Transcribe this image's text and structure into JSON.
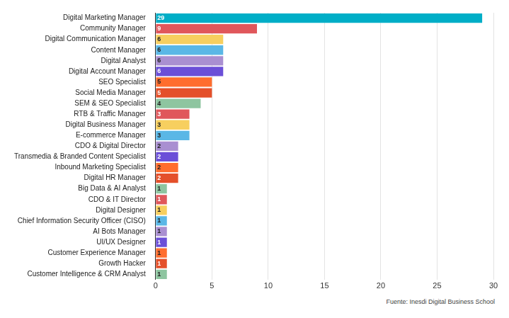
{
  "chart_data": {
    "type": "bar",
    "orientation": "horizontal",
    "categories": [
      "Digital Marketing Manager",
      "Community Manager",
      "Digital Communication Manager",
      "Content Manager",
      "Digital Analyst",
      "Digital Account Manager",
      "SEO Specialist",
      "Social Media Manager",
      "SEM & SEO Specialist",
      "RTB & Traffic Manager",
      "Digital Business Manager",
      "E-commerce Manager",
      "CDO & Digital Director",
      "Transmedia & Branded Content Specialist",
      "Inbound Marketing Specialist",
      "Digital HR Manager",
      "Big Data & AI Analyst",
      "CDO & IT Director",
      "Digital Designer",
      "Chief Information Security Officer (CISO)",
      "AI Bots Manager",
      "UI/UX Designer",
      "Customer Experience Manager",
      "Growth Hacker",
      "Customer Intelligence & CRM Analyst"
    ],
    "values": [
      29,
      9,
      6,
      6,
      6,
      6,
      5,
      5,
      4,
      3,
      3,
      3,
      2,
      2,
      2,
      2,
      1,
      1,
      1,
      1,
      1,
      1,
      1,
      1,
      1
    ],
    "colors": [
      "#00aec7",
      "#e0575b",
      "#f7cf5f",
      "#5ab7e6",
      "#a98fd1",
      "#6b4fd8",
      "#ff6d2e",
      "#e4502a",
      "#8ec5a0",
      "#e0575b",
      "#f7cf5f",
      "#5ab7e6",
      "#a98fd1",
      "#6b4fd8",
      "#ff6d2e",
      "#e4502a",
      "#8ec5a0",
      "#e0575b",
      "#f7cf5f",
      "#5ab7e6",
      "#a98fd1",
      "#6b4fd8",
      "#ff6d2e",
      "#e4502a",
      "#8ec5a0"
    ],
    "xlim": [
      0,
      30
    ],
    "xticks": [
      0,
      5,
      10,
      15,
      20,
      25,
      30
    ],
    "grid": true,
    "data_labels": true,
    "annotations": [
      "Fuente: Inesdi Digital Business School"
    ]
  }
}
